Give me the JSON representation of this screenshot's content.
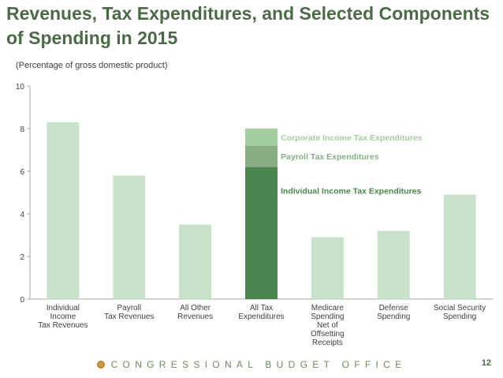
{
  "title": "Revenues, Tax Expenditures, and Selected Components of Spending in 2015",
  "subtitle": "(Percentage of gross domestic product)",
  "footer": {
    "org": "CONGRESSIONAL BUDGET OFFICE",
    "page": "12"
  },
  "colors": {
    "light_bar": "#c8e2c9",
    "individual": "#4a864e",
    "payroll": "#86ad84",
    "corporate": "#a3cd9f",
    "title": "#4a6b45",
    "footer": "#6b8c5a"
  },
  "chart_data": {
    "type": "bar",
    "title": "Revenues, Tax Expenditures, and Selected Components of Spending in 2015",
    "ylabel": "Percentage of gross domestic product",
    "ylim": [
      0,
      10
    ],
    "yticks": [
      0,
      2,
      4,
      6,
      8,
      10
    ],
    "categories": [
      [
        "Individual",
        "Income",
        "Tax Revenues"
      ],
      [
        "Payroll",
        "Tax Revenues"
      ],
      [
        "All Other",
        "Revenues"
      ],
      [
        "All Tax",
        "Expenditures"
      ],
      [
        "Medicare",
        "Spending",
        "Net of",
        "Offsetting",
        "Receipts"
      ],
      [
        "Defense",
        "Spending"
      ],
      [
        "Social Security",
        "Spending"
      ]
    ],
    "values": [
      8.3,
      5.8,
      3.5,
      null,
      2.9,
      3.2,
      4.9
    ],
    "stacked": {
      "category_index": 3,
      "segments": [
        {
          "name": "Individual Income Tax Expenditures",
          "value": 6.2
        },
        {
          "name": "Payroll Tax Expenditures",
          "value": 1.0
        },
        {
          "name": "Corporate Income Tax Expenditures",
          "value": 0.8
        }
      ]
    }
  }
}
